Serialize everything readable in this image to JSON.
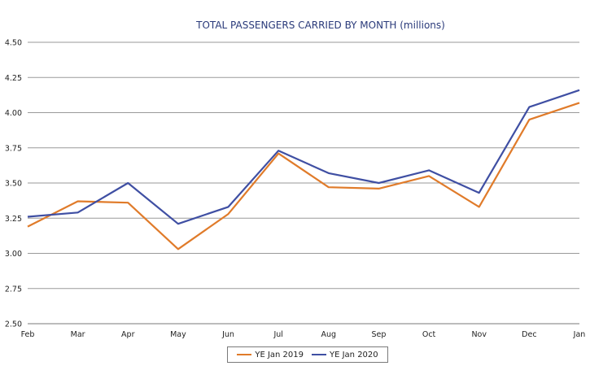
{
  "chart_data": {
    "type": "line",
    "title": "TOTAL PASSENGERS CARRIED BY MONTH (millions)",
    "categories": [
      "Feb",
      "Mar",
      "Apr",
      "May",
      "Jun",
      "Jul",
      "Aug",
      "Sep",
      "Oct",
      "Nov",
      "Dec",
      "Jan"
    ],
    "ylim": [
      2.5,
      4.5
    ],
    "yticks": [
      "2.50",
      "2.75",
      "3.00",
      "3.25",
      "3.50",
      "3.75",
      "4.00",
      "4.25",
      "4.50"
    ],
    "grid": true,
    "legend_position": "bottom",
    "series": [
      {
        "name": "YE Jan 2019",
        "color": "#e07b2a",
        "values": [
          3.19,
          3.37,
          3.36,
          3.03,
          3.28,
          3.71,
          3.47,
          3.46,
          3.55,
          3.33,
          3.95,
          4.07
        ]
      },
      {
        "name": "YE Jan 2020",
        "color": "#3f4fa3",
        "values": [
          3.26,
          3.29,
          3.5,
          3.21,
          3.33,
          3.73,
          3.57,
          3.5,
          3.59,
          3.43,
          4.04,
          4.16
        ]
      }
    ]
  }
}
